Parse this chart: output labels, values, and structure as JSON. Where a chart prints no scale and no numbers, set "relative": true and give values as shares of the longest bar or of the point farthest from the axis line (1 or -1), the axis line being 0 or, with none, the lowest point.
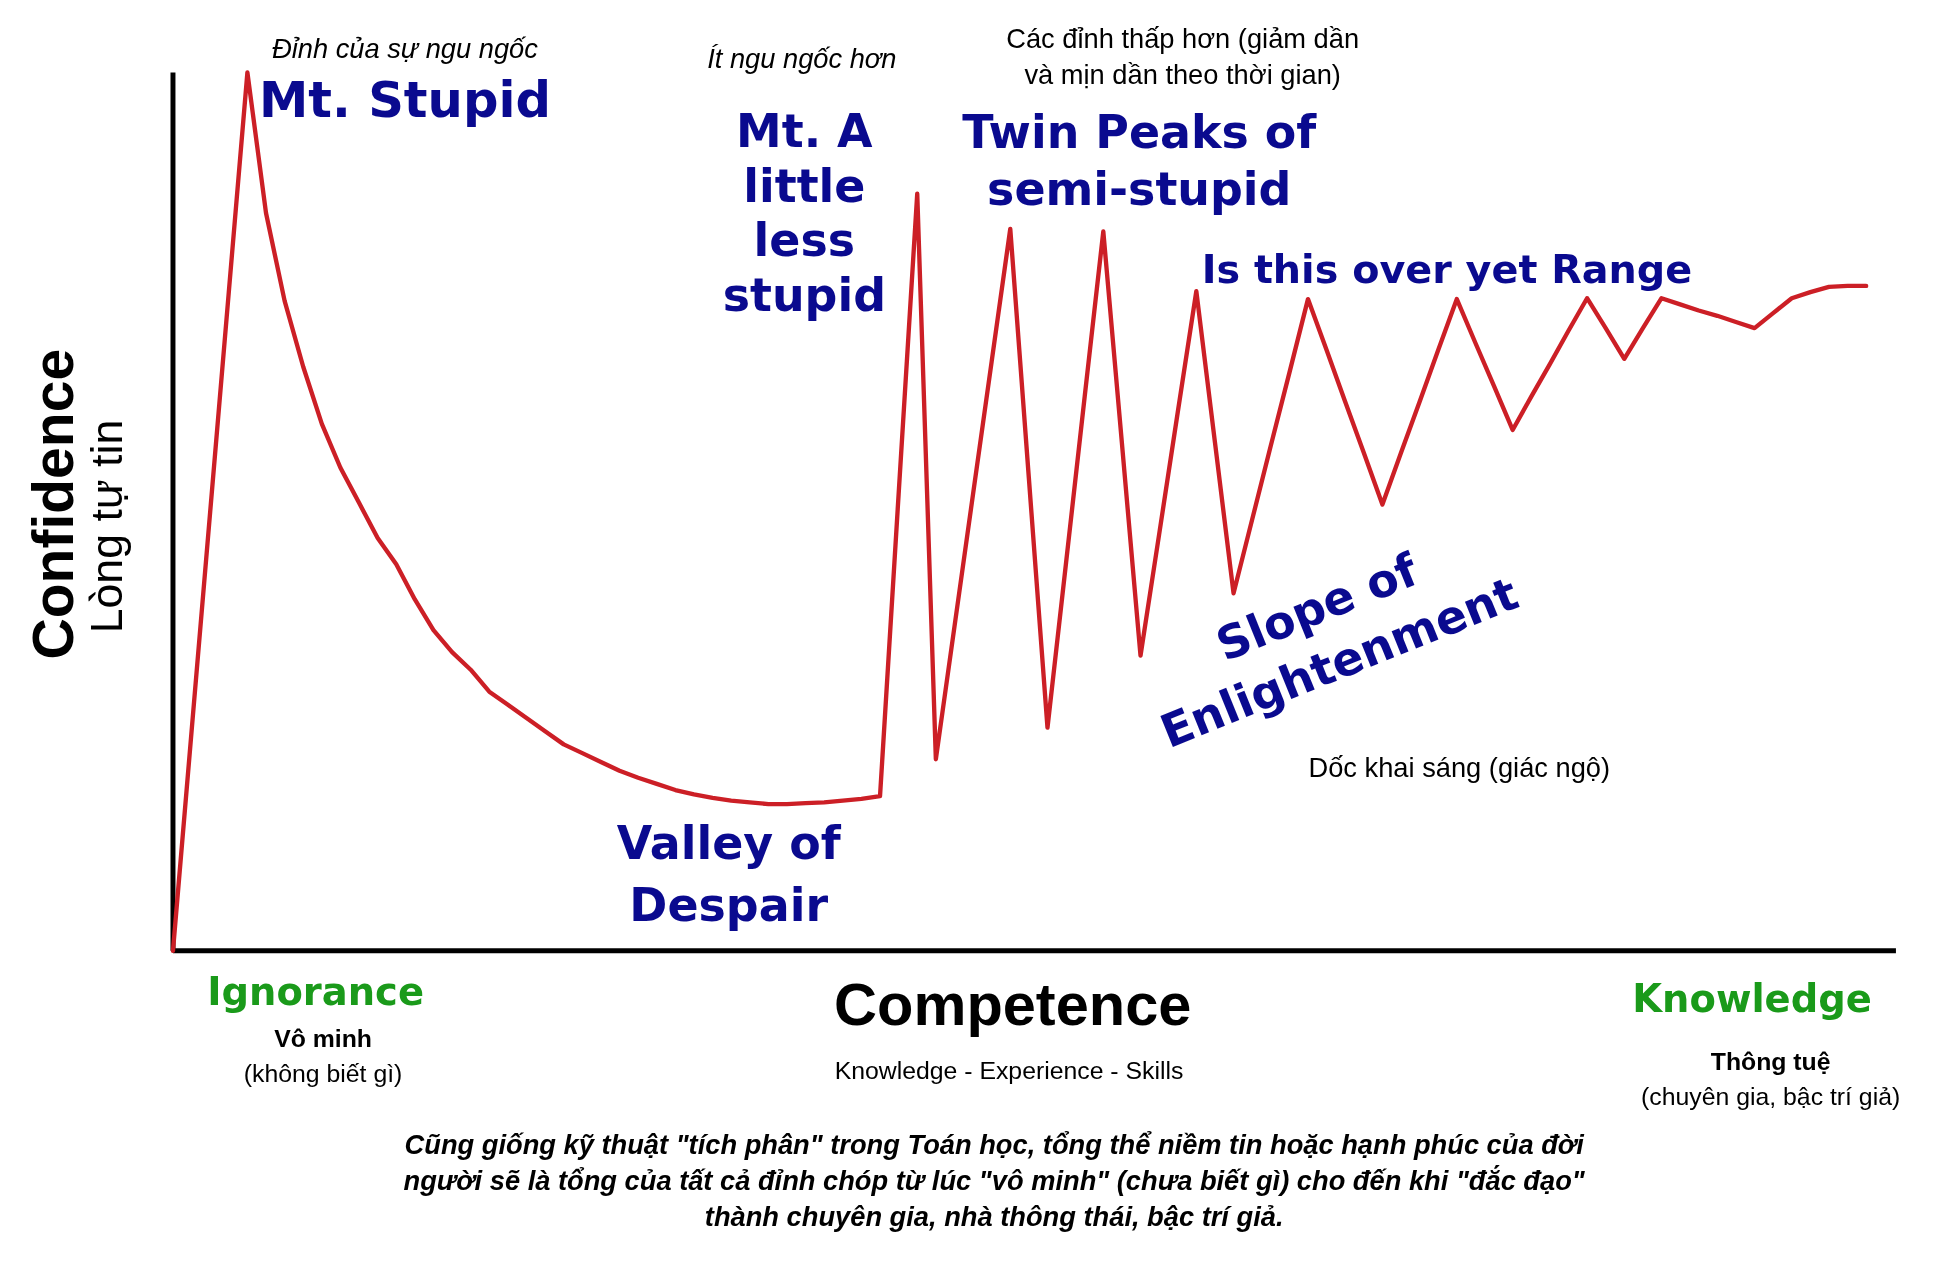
{
  "chart_data": {
    "type": "line",
    "relative": true,
    "xlabel": "Competence",
    "ylabel": "Confidence",
    "categories": [
      null,
      null,
      null,
      null,
      null,
      null,
      null,
      null,
      null,
      null,
      null,
      null,
      null,
      null,
      null,
      null,
      null,
      null,
      null,
      null,
      null,
      null,
      null,
      null,
      null,
      null,
      null,
      null,
      null,
      null,
      null,
      null,
      null,
      null,
      null,
      null,
      null,
      null,
      null,
      null,
      null,
      null,
      null,
      null,
      null,
      null,
      null,
      null,
      null,
      null,
      null,
      null,
      null,
      null,
      null,
      null,
      null,
      null,
      null,
      null,
      null,
      null,
      null,
      null,
      null,
      null,
      null,
      null,
      null,
      null,
      null,
      null,
      null,
      null,
      null,
      null,
      null,
      null,
      null,
      null,
      null,
      null,
      null,
      null,
      null,
      null,
      null,
      null,
      null,
      null,
      null,
      null
    ],
    "series": [
      {
        "color": "#cc1f26",
        "values": [
          0,
          0.25,
          0.5,
          0.75,
          1,
          0.84,
          0.74,
          0.665,
          0.6,
          0.55,
          0.51,
          0.47,
          0.44,
          0.4,
          0.365,
          0.34,
          0.32,
          0.295,
          0.28,
          0.265,
          0.25,
          0.235,
          0.225,
          0.215,
          0.205,
          0.197,
          0.19,
          0.183,
          0.178,
          0.174,
          0.171,
          0.169,
          0.167,
          0.167,
          0.168,
          0.169,
          0.171,
          0.173,
          0.176,
          0.52,
          0.862,
          0.218,
          0.369,
          0.52,
          0.671,
          0.822,
          0.538,
          0.254,
          0.442,
          0.631,
          0.819,
          0.578,
          0.336,
          0.474,
          0.613,
          0.751,
          0.579,
          0.407,
          0.491,
          0.575,
          0.658,
          0.742,
          0.684,
          0.625,
          0.567,
          0.508,
          0.567,
          0.625,
          0.684,
          0.742,
          0.692,
          0.643,
          0.593,
          0.631,
          0.668,
          0.706,
          0.743,
          0.709,
          0.674,
          0.709,
          0.743,
          0.736,
          0.729,
          0.723,
          0.716,
          0.709,
          0.726,
          0.743,
          0.75,
          0.756,
          0.757,
          0.757
        ]
      }
    ],
    "annotations": [
      "Đỉnh của sự ngu ngốc",
      "Mt. Stupid",
      "Ít ngu ngốc hơn",
      "Mt. A\nlittle\nless\nstupid",
      "Các đỉnh thấp hơn (giảm dần\nvà mịn dần theo thời gian)",
      "Twin Peaks of\nsemi-stupid",
      "Is this over yet Range",
      "Slope of\nEnlightenment",
      "Dốc khai sáng (giác ngộ)",
      "Valley of\nDespair",
      "Ignorance",
      "Vô minh",
      "(không biết gì)",
      "Knowledge - Experience - Skills",
      "Knowledge",
      "Thông tuệ",
      "(chuyên gia, bậc trí giả)",
      "Cũng giống kỹ thuật \"tích phân\" trong Toán học, tổng thể niềm tin hoặc hạnh phúc của đời\nngười sẽ là tổng của tất cả đỉnh chóp từ lúc \"vô minh\" (chưa biết gì) cho đến khi \"đắc đạo\"\nthành chuyên gia, nhà thông thái, bậc trí giả.",
      "Lòng tự tin"
    ]
  }
}
